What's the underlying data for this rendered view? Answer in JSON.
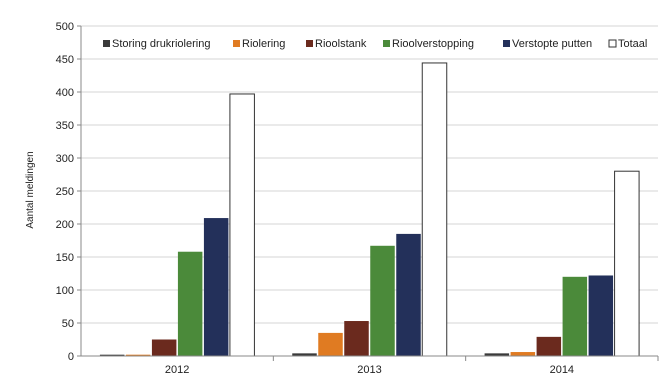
{
  "chart_data": {
    "type": "bar",
    "ylabel": "Aantal meldingen",
    "ylim": [
      0,
      500
    ],
    "yticks": [
      0,
      50,
      100,
      150,
      200,
      250,
      300,
      350,
      400,
      450,
      500
    ],
    "grid": true,
    "legend_position": "top",
    "categories": [
      "2012",
      "2013",
      "2014"
    ],
    "series": [
      {
        "name": "Storing drukriolering",
        "color": "#3a3a3a",
        "values": [
          2,
          4,
          4
        ]
      },
      {
        "name": "Riolering",
        "color": "#e07b22",
        "values": [
          2,
          35,
          6
        ]
      },
      {
        "name": "Rioolstank",
        "color": "#6b2a1e",
        "values": [
          25,
          53,
          29
        ]
      },
      {
        "name": "Rioolverstopping",
        "color": "#4b8a3a",
        "values": [
          158,
          167,
          120
        ]
      },
      {
        "name": "Verstopte putten",
        "color": "#23305a",
        "values": [
          209,
          185,
          122
        ]
      },
      {
        "name": "Totaal",
        "color": "#ffffff",
        "values": [
          397,
          444,
          280
        ]
      }
    ]
  }
}
